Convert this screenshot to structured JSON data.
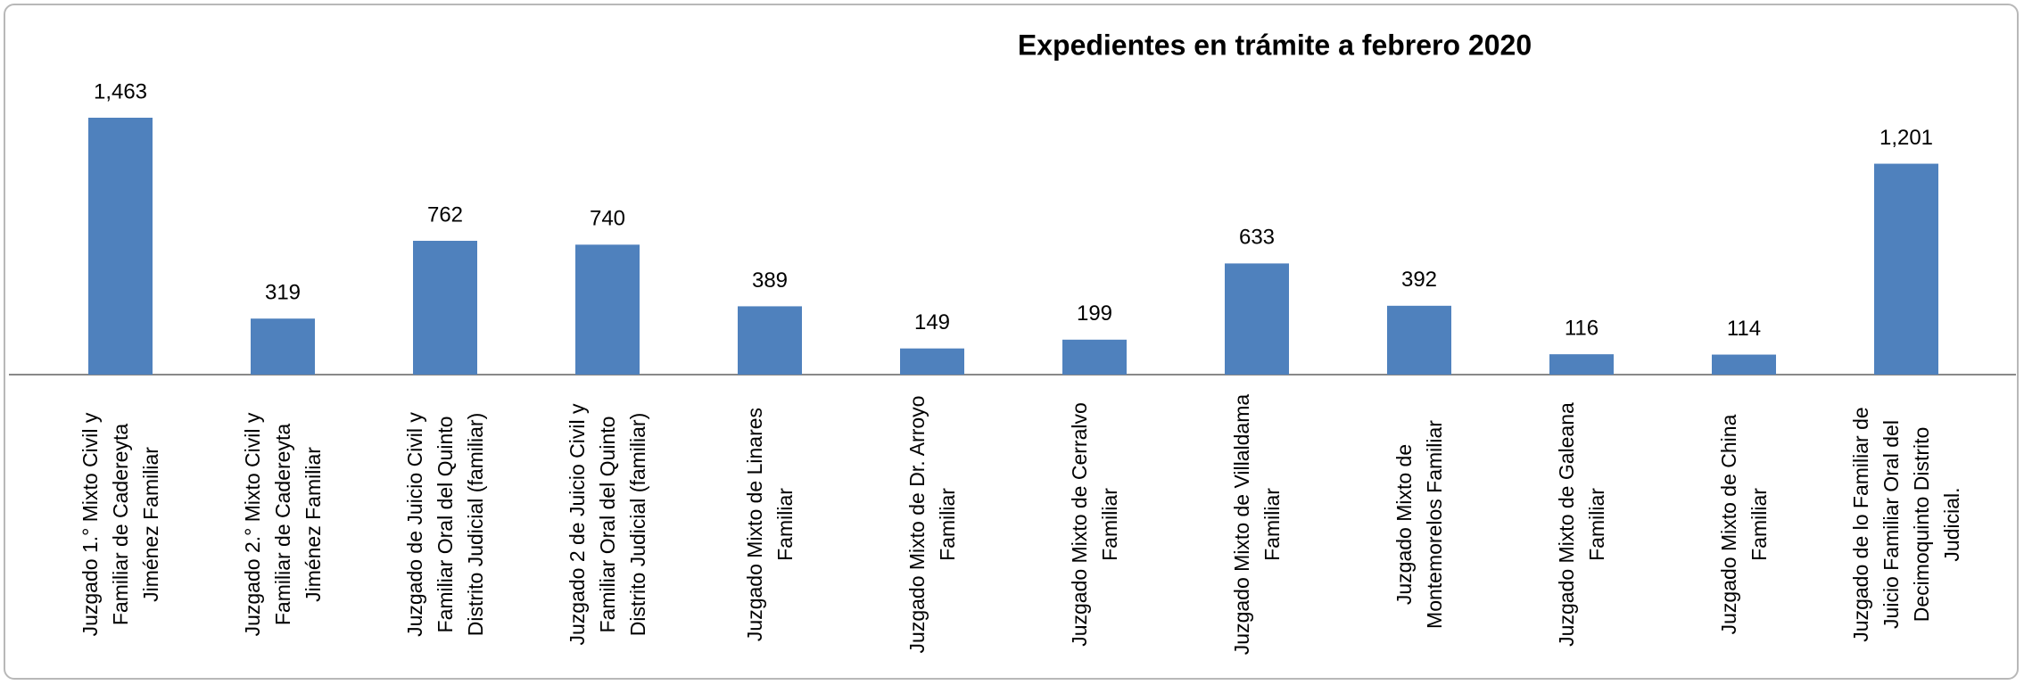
{
  "chart_data": {
    "type": "bar",
    "title": "Expedientes en trámite a febrero 2020",
    "categories": [
      "Juzgado 1.° Mixto Civil y Familiar de Cadereyta Jiménez Familiar",
      "Juzgado 2.° Mixto Civil y Familiar de Cadereyta Jiménez Familiar",
      "Juzgado de Juicio Civil y Familiar Oral del Quinto Distrito Judicial (familiar)",
      "Juzgado 2 de Juicio Civil y Familiar Oral del Quinto Distrito Judicial (familiar)",
      "Juzgado Mixto de Linares Familiar",
      "Juzgado Mixto de Dr. Arroyo Familiar",
      "Juzgado Mixto de Cerralvo Familiar",
      "Juzgado Mixto de Villaldama Familiar",
      "Juzgado Mixto de Montemorelos Familiar",
      "Juzgado Mixto de Galeana Familiar",
      "Juzgado Mixto de China Familiar",
      "Juzgado de lo Familiar de Juicio Familiar Oral del Decimoquinto Distrito Judicial."
    ],
    "values": [
      1463,
      319,
      762,
      740,
      389,
      149,
      199,
      633,
      392,
      116,
      114,
      1201
    ],
    "value_labels": [
      "1,463",
      "319",
      "762",
      "740",
      "389",
      "149",
      "199",
      "633",
      "392",
      "116",
      "114",
      "1,201"
    ],
    "color": "#4f81bd",
    "ylim": [
      0,
      1600
    ]
  }
}
